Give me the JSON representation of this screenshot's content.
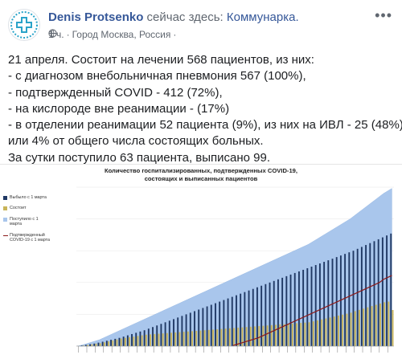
{
  "header": {
    "author_name": "Denis Protsenko",
    "presence_text": "сейчас здесь:",
    "place_name": "Коммунарка.",
    "time": "1 ч.",
    "separator": "·",
    "location": "Город Москва, Россия",
    "privacy_icon": "globe-icon",
    "menu_icon": "more-options-icon"
  },
  "post_text": {
    "lines": [
      "21 апреля. Состоит на лечении 568 пациентов, из них:",
      "- с диагнозом внебольничная пневмония 567 (100%),",
      "- подтвержденный COVID - 412 (72%),",
      "- на кислороде вне реанимации - (17%)",
      "- в отделении реанимации 52 пациента (9%), из них на ИВЛ - 25 (48%)",
      "или 4% от общего числа состоящих больных.",
      "За сутки поступило 63 пациента, выписано 99."
    ]
  },
  "chart_data": {
    "type": "bar",
    "title": "Количество госпитализированных, подтвержденных COVID-19, состоящих и выписанных пациентов",
    "title_lines": [
      "Количество госпитализированных, подтвержденных COVID-19,",
      "состоящих и выписанных пациентов"
    ],
    "legend": [
      {
        "label": "Выбыло с 1 марта",
        "kind": "bar",
        "color": "#1f3864"
      },
      {
        "label": "Состоит",
        "kind": "bar",
        "color": "#c9b458"
      },
      {
        "label": "Поступило с 1 марта",
        "kind": "area",
        "color": "#a9c6ec"
      },
      {
        "label": "Подтвержденный COVID-19 с 1 марта",
        "kind": "line",
        "color": "#8b1a1a"
      }
    ],
    "ylim": [
      0,
      2500
    ],
    "series": [
      {
        "name": "Поступило с 1 марта",
        "values": [
          5,
          20,
          40,
          60,
          80,
          100,
          130,
          160,
          190,
          220,
          250,
          280,
          310,
          340,
          370,
          400,
          430,
          460,
          490,
          520,
          550,
          580,
          610,
          640,
          670,
          700,
          730,
          760,
          790,
          820,
          850,
          880,
          910,
          940,
          970,
          1000,
          1030,
          1060,
          1090,
          1120,
          1150,
          1180,
          1210,
          1240,
          1270,
          1300,
          1330,
          1360,
          1390,
          1420,
          1450,
          1480,
          1510,
          1540,
          1570,
          1600,
          1640,
          1680,
          1720,
          1760,
          1800,
          1840,
          1880,
          1920,
          1960,
          2000,
          2050,
          2100,
          2150,
          2200,
          2250,
          2300,
          2350,
          2400,
          2440,
          2480
        ]
      },
      {
        "name": "Выбыло с 1 марта",
        "values": [
          3,
          10,
          20,
          30,
          40,
          55,
          70,
          85,
          100,
          115,
          130,
          150,
          170,
          190,
          210,
          230,
          250,
          275,
          300,
          325,
          350,
          375,
          400,
          425,
          450,
          475,
          500,
          525,
          550,
          575,
          600,
          625,
          650,
          675,
          700,
          725,
          750,
          775,
          800,
          825,
          850,
          875,
          900,
          925,
          950,
          975,
          1000,
          1025,
          1050,
          1075,
          1100,
          1125,
          1150,
          1175,
          1200,
          1225,
          1250,
          1275,
          1300,
          1325,
          1350,
          1375,
          1400,
          1425,
          1450,
          1475,
          1500,
          1530,
          1560,
          1590,
          1620,
          1650,
          1680,
          1710,
          1740,
          1770
        ]
      },
      {
        "name": "Состоит",
        "values": [
          2,
          10,
          20,
          30,
          40,
          45,
          60,
          75,
          90,
          105,
          120,
          130,
          140,
          150,
          160,
          170,
          180,
          185,
          190,
          195,
          200,
          205,
          210,
          215,
          220,
          225,
          230,
          235,
          240,
          245,
          250,
          255,
          260,
          265,
          270,
          275,
          280,
          285,
          290,
          295,
          300,
          305,
          310,
          315,
          320,
          325,
          330,
          335,
          340,
          345,
          350,
          355,
          360,
          365,
          370,
          375,
          390,
          405,
          420,
          435,
          450,
          465,
          480,
          495,
          510,
          525,
          550,
          570,
          590,
          610,
          630,
          650,
          670,
          690,
          700,
          568
        ]
      },
      {
        "name": "Подтвержденный COVID-19 с 1 марта",
        "values": [
          0,
          0,
          0,
          0,
          0,
          0,
          0,
          0,
          0,
          0,
          0,
          0,
          0,
          0,
          0,
          0,
          0,
          0,
          0,
          0,
          0,
          0,
          0,
          0,
          0,
          0,
          0,
          0,
          0,
          0,
          0,
          0,
          0,
          0,
          0,
          0,
          0,
          10,
          30,
          50,
          70,
          90,
          110,
          130,
          160,
          190,
          220,
          250,
          280,
          310,
          340,
          370,
          400,
          430,
          460,
          490,
          520,
          550,
          580,
          610,
          640,
          670,
          700,
          730,
          760,
          790,
          820,
          850,
          880,
          910,
          940,
          970,
          1000,
          1050,
          1080,
          1110
        ]
      }
    ]
  }
}
